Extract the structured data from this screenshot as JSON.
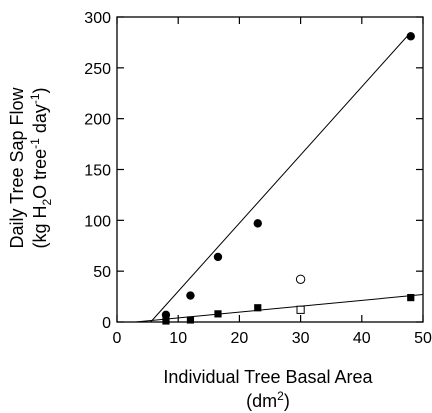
{
  "chart_data": {
    "type": "scatter",
    "xlim": [
      0,
      50
    ],
    "ylim": [
      0,
      300
    ],
    "x_ticks": [
      0,
      10,
      20,
      30,
      40,
      50
    ],
    "y_ticks": [
      0,
      50,
      100,
      150,
      200,
      250,
      300
    ],
    "x_tick_labels": [
      "0",
      "10",
      "20",
      "30",
      "40",
      "50"
    ],
    "y_tick_labels": [
      "0",
      "50",
      "100",
      "150",
      "200",
      "250",
      "300"
    ],
    "xlabel_line1": "Individual Tree Basal Area",
    "xlabel_line2_main": "(dm",
    "xlabel_line2_sup": "2",
    "xlabel_line2_end": ")",
    "ylabel_line1": "Daily Tree Sap Flow",
    "ylabel_line2_a": "(kg H",
    "ylabel_line2_sub": "2",
    "ylabel_line2_b": "O tree",
    "ylabel_line2_sup1": "-1",
    "ylabel_line2_c": " day",
    "ylabel_line2_sup2": "-1",
    "ylabel_line2_d": ")",
    "grid": false,
    "series": [
      {
        "marker": "filled-circle",
        "color": "#000000",
        "points": [
          [
            8,
            7
          ],
          [
            12,
            26
          ],
          [
            16.5,
            64
          ],
          [
            23,
            97
          ],
          [
            48,
            281
          ]
        ],
        "fit_line": [
          [
            5.5,
            0
          ],
          [
            48,
            285
          ]
        ]
      },
      {
        "marker": "open-circle",
        "color": "#000000",
        "points": [
          [
            30,
            42
          ]
        ]
      },
      {
        "marker": "filled-square",
        "color": "#000000",
        "points": [
          [
            8,
            1
          ],
          [
            12,
            2
          ],
          [
            16.5,
            8
          ],
          [
            23,
            14
          ],
          [
            48,
            24
          ]
        ],
        "fit_line": [
          [
            3,
            0
          ],
          [
            50,
            27
          ]
        ]
      },
      {
        "marker": "open-square",
        "color": "#000000",
        "points": [
          [
            30,
            12
          ]
        ]
      }
    ]
  }
}
